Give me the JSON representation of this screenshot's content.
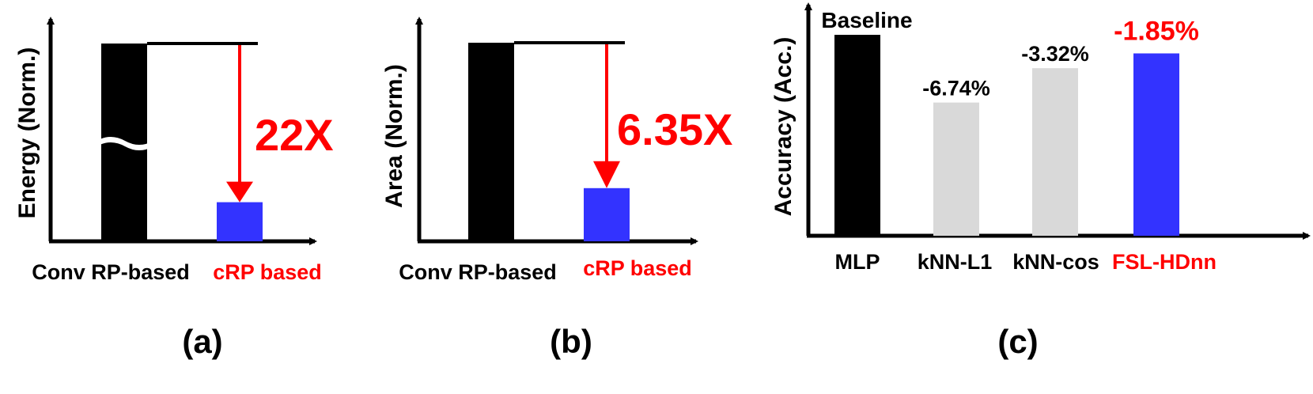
{
  "panels": {
    "a": {
      "caption": "(a)"
    },
    "b": {
      "caption": "(b)"
    },
    "c": {
      "caption": "(c)"
    }
  },
  "colors": {
    "black": "#000000",
    "red": "#ff0000",
    "blue": "#3333ff",
    "gray": "#d9d9d9"
  },
  "chart_data": [
    {
      "type": "bar",
      "ylabel": "Energy (Norm.)",
      "categories": [
        "Conv RP-based",
        "cRP based"
      ],
      "values": [
        22,
        1
      ],
      "bar_colors": [
        "#000000",
        "#3333ff"
      ],
      "axis_break_on_first_bar": true,
      "annotation": {
        "text": "22X",
        "color": "#ff0000"
      },
      "category_label_colors": [
        "#000000",
        "#ff0000"
      ]
    },
    {
      "type": "bar",
      "ylabel": "Area (Norm.)",
      "categories": [
        "Conv RP-based",
        "cRP based"
      ],
      "values": [
        6.35,
        1
      ],
      "bar_colors": [
        "#000000",
        "#3333ff"
      ],
      "annotation": {
        "text": "6.35X",
        "color": "#ff0000"
      },
      "category_label_colors": [
        "#000000",
        "#ff0000"
      ]
    },
    {
      "type": "bar",
      "ylabel": "Accuracy (Acc.)",
      "categories": [
        "MLP",
        "kNN-L1",
        "kNN-cos",
        "FSL-HDnn"
      ],
      "values": [
        100,
        93.26,
        96.68,
        98.15
      ],
      "bar_colors": [
        "#000000",
        "#d9d9d9",
        "#d9d9d9",
        "#3333ff"
      ],
      "bar_labels": [
        "Baseline",
        "-6.74%",
        "-3.32%",
        "-1.85%"
      ],
      "bar_label_colors": [
        "#000000",
        "#000000",
        "#000000",
        "#ff0000"
      ],
      "category_label_colors": [
        "#000000",
        "#000000",
        "#000000",
        "#ff0000"
      ]
    }
  ]
}
